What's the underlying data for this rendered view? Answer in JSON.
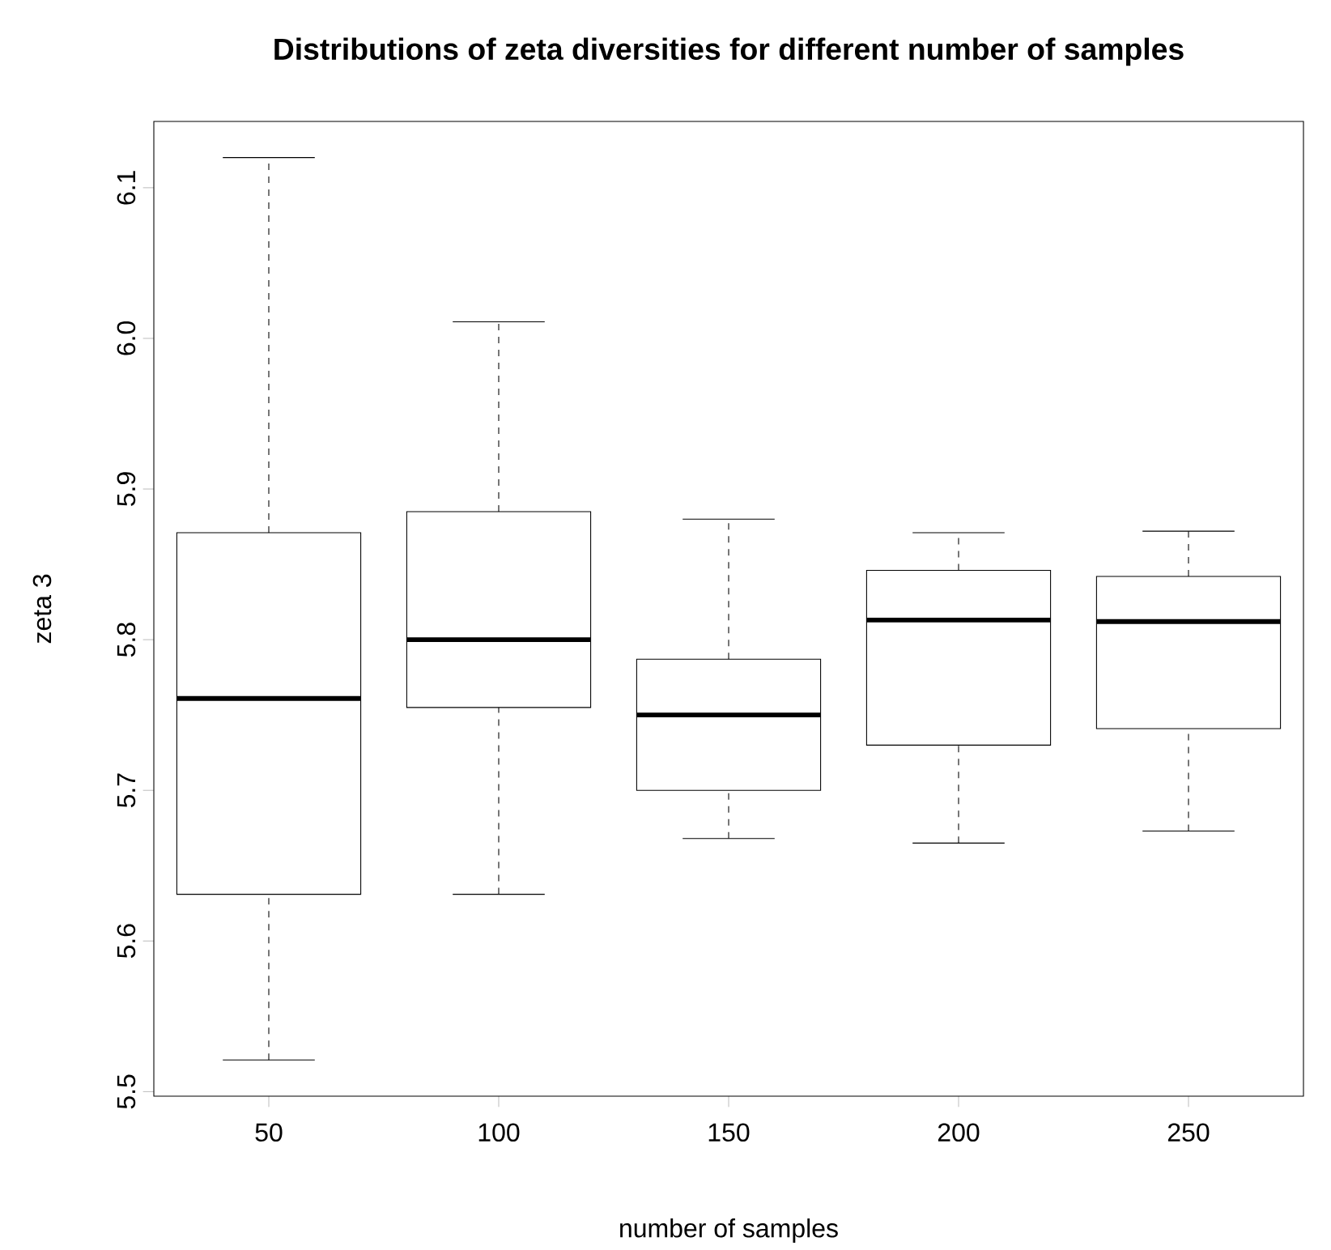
{
  "chart_data": {
    "type": "box",
    "title": "Distributions of zeta diversities for different number of samples",
    "xlabel": "number of samples",
    "ylabel": "zeta 3",
    "categories": [
      "50",
      "100",
      "150",
      "200",
      "250"
    ],
    "boxes": [
      {
        "low": 5.521,
        "q1": 5.631,
        "median": 5.761,
        "q3": 5.871,
        "high": 6.12
      },
      {
        "low": 5.631,
        "q1": 5.755,
        "median": 5.8,
        "q3": 5.885,
        "high": 6.011
      },
      {
        "low": 5.668,
        "q1": 5.7,
        "median": 5.75,
        "q3": 5.787,
        "high": 5.88
      },
      {
        "low": 5.665,
        "q1": 5.73,
        "median": 5.813,
        "q3": 5.846,
        "high": 5.871
      },
      {
        "low": 5.673,
        "q1": 5.741,
        "median": 5.812,
        "q3": 5.842,
        "high": 5.872
      }
    ],
    "ylim": [
      5.497,
      6.144
    ],
    "yticks": [
      5.5,
      5.6,
      5.7,
      5.8,
      5.9,
      {
        "value": 6,
        "label": "6.0"
      },
      6.1
    ]
  }
}
